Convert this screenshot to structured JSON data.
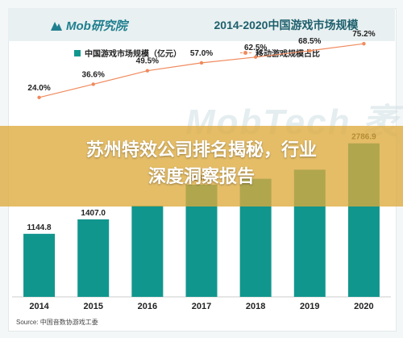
{
  "header": {
    "logo_text": "Mob研究院",
    "chart_title": "2014-2020中国游戏市场规模"
  },
  "legend": {
    "bar_label": "中国游戏市场规模（亿元）",
    "line_label": "移动游戏规模占比"
  },
  "watermark": "MobTech 袤",
  "banner": {
    "line1": "苏州特效公司排名揭秘，行业",
    "line2": "深度洞察报告"
  },
  "source": "Source:   中国音数协游戏工委",
  "colors": {
    "bar": "#11968e",
    "line": "#f08a5d",
    "title": "#1d5f6c",
    "banner": "#deaa3c"
  },
  "chart_data": {
    "type": "bar",
    "title": "2014-2020中国游戏市场规模",
    "categories": [
      "2014",
      "2015",
      "2016",
      "2017",
      "2018",
      "2019",
      "2020"
    ],
    "series": [
      {
        "name": "中国游戏市场规模（亿元）",
        "type": "bar",
        "values": [
          1144.8,
          1407.0,
          1655.7,
          2036.1,
          2144.4,
          2308.8,
          2786.9
        ],
        "labels": [
          "1144.8",
          "1407.0",
          "",
          "2036.1",
          "",
          "",
          "2786.9"
        ]
      },
      {
        "name": "移动游戏规模占比",
        "type": "line",
        "values": [
          24.0,
          36.6,
          49.5,
          57.0,
          62.5,
          68.5,
          75.2
        ],
        "labels": [
          "24.0%",
          "36.6%",
          "49.5%",
          "57.0%",
          "62.5%",
          "68.5%",
          "75.2%"
        ]
      }
    ],
    "bar_ylim": [
      0,
      2900
    ],
    "line_ylim": [
      0,
      100
    ],
    "grid": false,
    "legend_position": "top"
  }
}
